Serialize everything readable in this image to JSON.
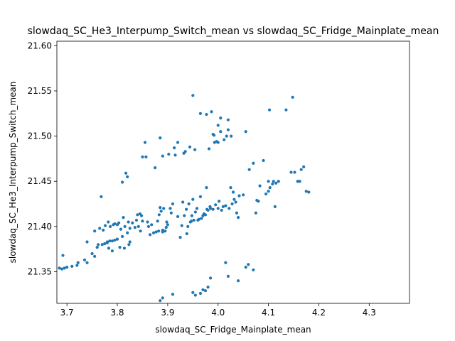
{
  "chart_data": {
    "type": "scatter",
    "title": "slowdaq_SC_He3_Interpump_Switch_mean vs slowdaq_SC_Fridge_Mainplate_mean",
    "xlabel": "slowdaq_SC_Fridge_Mainplate_mean",
    "ylabel": "slowdaq_SC_He3_Interpump_Switch_mean",
    "xlim": [
      3.68,
      4.38
    ],
    "ylim": [
      21.315,
      21.605
    ],
    "xticks": [
      3.7,
      3.8,
      3.9,
      4.0,
      4.1,
      4.2,
      4.3
    ],
    "xtick_labels": [
      "3.7",
      "3.8",
      "3.9",
      "4.0",
      "4.1",
      "4.2",
      "4.3"
    ],
    "yticks": [
      21.35,
      21.4,
      21.45,
      21.5,
      21.55,
      21.6
    ],
    "ytick_labels": [
      "21.35",
      "21.40",
      "21.45",
      "21.50",
      "21.55",
      "21.60"
    ],
    "marker_color": "#1f77b4",
    "grid": false,
    "series": [
      {
        "name": "points",
        "points": [
          [
            3.685,
            21.354
          ],
          [
            3.69,
            21.353
          ],
          [
            3.692,
            21.368
          ],
          [
            3.695,
            21.354
          ],
          [
            3.7,
            21.355
          ],
          [
            3.71,
            21.356
          ],
          [
            3.72,
            21.357
          ],
          [
            3.722,
            21.36
          ],
          [
            3.735,
            21.363
          ],
          [
            3.74,
            21.36
          ],
          [
            3.74,
            21.383
          ],
          [
            3.75,
            21.37
          ],
          [
            3.755,
            21.367
          ],
          [
            3.755,
            21.395
          ],
          [
            3.76,
            21.377
          ],
          [
            3.762,
            21.38
          ],
          [
            3.765,
            21.398
          ],
          [
            3.768,
            21.433
          ],
          [
            3.77,
            21.38
          ],
          [
            3.772,
            21.396
          ],
          [
            3.775,
            21.381
          ],
          [
            3.776,
            21.401
          ],
          [
            3.78,
            21.382
          ],
          [
            3.78,
            21.383
          ],
          [
            3.782,
            21.405
          ],
          [
            3.783,
            21.376
          ],
          [
            3.785,
            21.384
          ],
          [
            3.786,
            21.4
          ],
          [
            3.79,
            21.384
          ],
          [
            3.79,
            21.373
          ],
          [
            3.792,
            21.402
          ],
          [
            3.795,
            21.385
          ],
          [
            3.795,
            21.403
          ],
          [
            3.8,
            21.386
          ],
          [
            3.8,
            21.402
          ],
          [
            3.803,
            21.404
          ],
          [
            3.805,
            21.377
          ],
          [
            3.807,
            21.397
          ],
          [
            3.81,
            21.389
          ],
          [
            3.81,
            21.449
          ],
          [
            3.812,
            21.41
          ],
          [
            3.814,
            21.376
          ],
          [
            3.815,
            21.4
          ],
          [
            3.817,
            21.459
          ],
          [
            3.82,
            21.393
          ],
          [
            3.82,
            21.455
          ],
          [
            3.822,
            21.405
          ],
          [
            3.823,
            21.38
          ],
          [
            3.825,
            21.383
          ],
          [
            3.825,
            21.398
          ],
          [
            3.83,
            21.404
          ],
          [
            3.835,
            21.399
          ],
          [
            3.838,
            21.407
          ],
          [
            3.84,
            21.413
          ],
          [
            3.842,
            21.4
          ],
          [
            3.845,
            21.414
          ],
          [
            3.846,
            21.395
          ],
          [
            3.848,
            21.412
          ],
          [
            3.85,
            21.406
          ],
          [
            3.85,
            21.477
          ],
          [
            3.855,
            21.493
          ],
          [
            3.857,
            21.477
          ],
          [
            3.86,
            21.405
          ],
          [
            3.862,
            21.4
          ],
          [
            3.865,
            21.391
          ],
          [
            3.868,
            21.402
          ],
          [
            3.872,
            21.393
          ],
          [
            3.875,
            21.465
          ],
          [
            3.877,
            21.394
          ],
          [
            3.88,
            21.406
          ],
          [
            3.882,
            21.395
          ],
          [
            3.883,
            21.413
          ],
          [
            3.885,
            21.498
          ],
          [
            3.885,
            21.421
          ],
          [
            3.887,
            21.417
          ],
          [
            3.89,
            21.394
          ],
          [
            3.89,
            21.478
          ],
          [
            3.89,
            21.396
          ],
          [
            3.892,
            21.42
          ],
          [
            3.895,
            21.395
          ],
          [
            3.897,
            21.399
          ],
          [
            3.898,
            21.405
          ],
          [
            3.9,
            21.402
          ],
          [
            3.902,
            21.48
          ],
          [
            3.905,
            21.42
          ],
          [
            3.907,
            21.415
          ],
          [
            3.91,
            21.425
          ],
          [
            3.913,
            21.487
          ],
          [
            3.915,
            21.479
          ],
          [
            3.92,
            21.411
          ],
          [
            3.92,
            21.493
          ],
          [
            3.925,
            21.388
          ],
          [
            3.928,
            21.401
          ],
          [
            3.93,
            21.427
          ],
          [
            3.932,
            21.481
          ],
          [
            3.933,
            21.412
          ],
          [
            3.935,
            21.483
          ],
          [
            3.937,
            21.419
          ],
          [
            3.938,
            21.392
          ],
          [
            3.94,
            21.4
          ],
          [
            3.942,
            21.425
          ],
          [
            3.944,
            21.488
          ],
          [
            3.945,
            21.405
          ],
          [
            3.947,
            21.406
          ],
          [
            3.948,
            21.412
          ],
          [
            3.95,
            21.545
          ],
          [
            3.95,
            21.43
          ],
          [
            3.952,
            21.407
          ],
          [
            3.954,
            21.485
          ],
          [
            3.955,
            21.416
          ],
          [
            3.958,
            21.42
          ],
          [
            3.96,
            21.407
          ],
          [
            3.962,
            21.408
          ],
          [
            3.965,
            21.525
          ],
          [
            3.965,
            21.433
          ],
          [
            3.967,
            21.409
          ],
          [
            3.97,
            21.412
          ],
          [
            3.972,
            21.414
          ],
          [
            3.975,
            21.413
          ],
          [
            3.977,
            21.524
          ],
          [
            3.977,
            21.443
          ],
          [
            3.978,
            21.419
          ],
          [
            3.98,
            21.418
          ],
          [
            3.982,
            21.486
          ],
          [
            3.984,
            21.422
          ],
          [
            3.985,
            21.42
          ],
          [
            3.987,
            21.527
          ],
          [
            3.99,
            21.502
          ],
          [
            3.99,
            21.419
          ],
          [
            3.992,
            21.501
          ],
          [
            3.993,
            21.493
          ],
          [
            3.995,
            21.424
          ],
          [
            3.997,
            21.494
          ],
          [
            4.0,
            21.42
          ],
          [
            4.0,
            21.512
          ],
          [
            4.0,
            21.493
          ],
          [
            4.002,
            21.428
          ],
          [
            4.005,
            21.52
          ],
          [
            4.005,
            21.505
          ],
          [
            4.007,
            21.418
          ],
          [
            4.01,
            21.422
          ],
          [
            4.012,
            21.496
          ],
          [
            4.015,
            21.423
          ],
          [
            4.017,
            21.5
          ],
          [
            4.02,
            21.518
          ],
          [
            4.02,
            21.507
          ],
          [
            4.022,
            21.42
          ],
          [
            4.025,
            21.443
          ],
          [
            4.026,
            21.5
          ],
          [
            4.028,
            21.425
          ],
          [
            4.03,
            21.438
          ],
          [
            4.032,
            21.43
          ],
          [
            4.035,
            21.427
          ],
          [
            4.037,
            21.415
          ],
          [
            4.04,
            21.41
          ],
          [
            4.042,
            21.434
          ],
          [
            4.05,
            21.435
          ],
          [
            4.055,
            21.505
          ],
          [
            4.062,
            21.463
          ],
          [
            4.07,
            21.47
          ],
          [
            4.075,
            21.415
          ],
          [
            4.077,
            21.429
          ],
          [
            4.08,
            21.428
          ],
          [
            4.083,
            21.445
          ],
          [
            4.09,
            21.473
          ],
          [
            4.095,
            21.436
          ],
          [
            4.1,
            21.439
          ],
          [
            4.1,
            21.45
          ],
          [
            4.102,
            21.529
          ],
          [
            4.103,
            21.443
          ],
          [
            4.108,
            21.447
          ],
          [
            4.11,
            21.45
          ],
          [
            4.113,
            21.422
          ],
          [
            4.115,
            21.448
          ],
          [
            4.12,
            21.45
          ],
          [
            4.135,
            21.529
          ],
          [
            4.145,
            21.46
          ],
          [
            4.148,
            21.543
          ],
          [
            4.152,
            21.46
          ],
          [
            4.158,
            21.45
          ],
          [
            4.162,
            21.45
          ],
          [
            4.165,
            21.463
          ],
          [
            4.17,
            21.466
          ],
          [
            4.175,
            21.439
          ],
          [
            4.18,
            21.438
          ],
          [
            3.885,
            21.318
          ],
          [
            3.89,
            21.321
          ],
          [
            3.91,
            21.325
          ],
          [
            3.95,
            21.327
          ],
          [
            3.955,
            21.324
          ],
          [
            3.965,
            21.326
          ],
          [
            3.97,
            21.33
          ],
          [
            3.975,
            21.329
          ],
          [
            3.98,
            21.333
          ],
          [
            3.985,
            21.343
          ],
          [
            4.015,
            21.36
          ],
          [
            4.02,
            21.345
          ],
          [
            4.04,
            21.34
          ],
          [
            4.055,
            21.355
          ],
          [
            4.06,
            21.358
          ],
          [
            4.07,
            21.352
          ]
        ]
      }
    ]
  }
}
